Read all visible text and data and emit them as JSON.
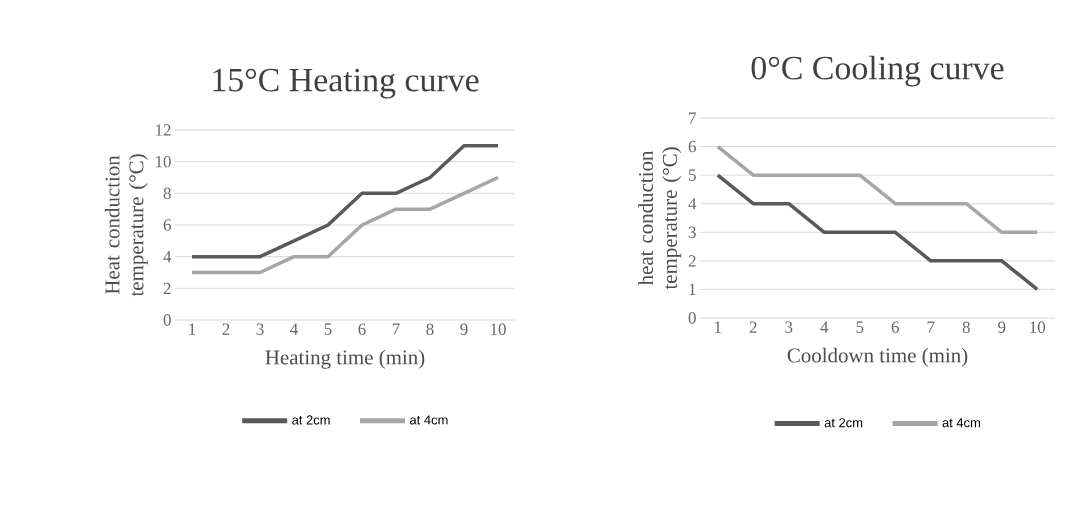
{
  "chart_data": [
    {
      "type": "line",
      "title": "15°C Heating curve",
      "xlabel": "Heating time (min)",
      "ylabel": "Heat conduction temperature (°C)",
      "categories": [
        "1",
        "2",
        "3",
        "4",
        "5",
        "6",
        "7",
        "8",
        "9",
        "10"
      ],
      "series": [
        {
          "name": "at 2cm",
          "color": "#595959",
          "values": [
            4,
            4,
            4,
            5,
            6,
            8,
            8,
            9,
            11,
            11
          ]
        },
        {
          "name": "at 4cm",
          "color": "#a6a6a6",
          "values": [
            3,
            3,
            3,
            4,
            4,
            6,
            7,
            7,
            8,
            9
          ]
        }
      ],
      "ylim": [
        0,
        12
      ],
      "yticks": [
        0,
        2,
        4,
        6,
        8,
        10,
        12
      ],
      "grid": "y",
      "legend": "bottom"
    },
    {
      "type": "line",
      "title": "0°C Cooling curve",
      "xlabel": "Cooldown time (min)",
      "ylabel": "heat conduction temperature (°C)",
      "categories": [
        "1",
        "2",
        "3",
        "4",
        "5",
        "6",
        "7",
        "8",
        "9",
        "10"
      ],
      "series": [
        {
          "name": "at 2cm",
          "color": "#595959",
          "values": [
            5,
            4,
            4,
            3,
            3,
            3,
            2,
            2,
            2,
            1
          ]
        },
        {
          "name": "at 4cm",
          "color": "#a6a6a6",
          "values": [
            6,
            5,
            5,
            5,
            5,
            4,
            4,
            4,
            3,
            3
          ]
        }
      ],
      "ylim": [
        0,
        7
      ],
      "yticks": [
        0,
        1,
        2,
        3,
        4,
        5,
        6,
        7
      ],
      "grid": "y",
      "legend": "bottom"
    }
  ]
}
